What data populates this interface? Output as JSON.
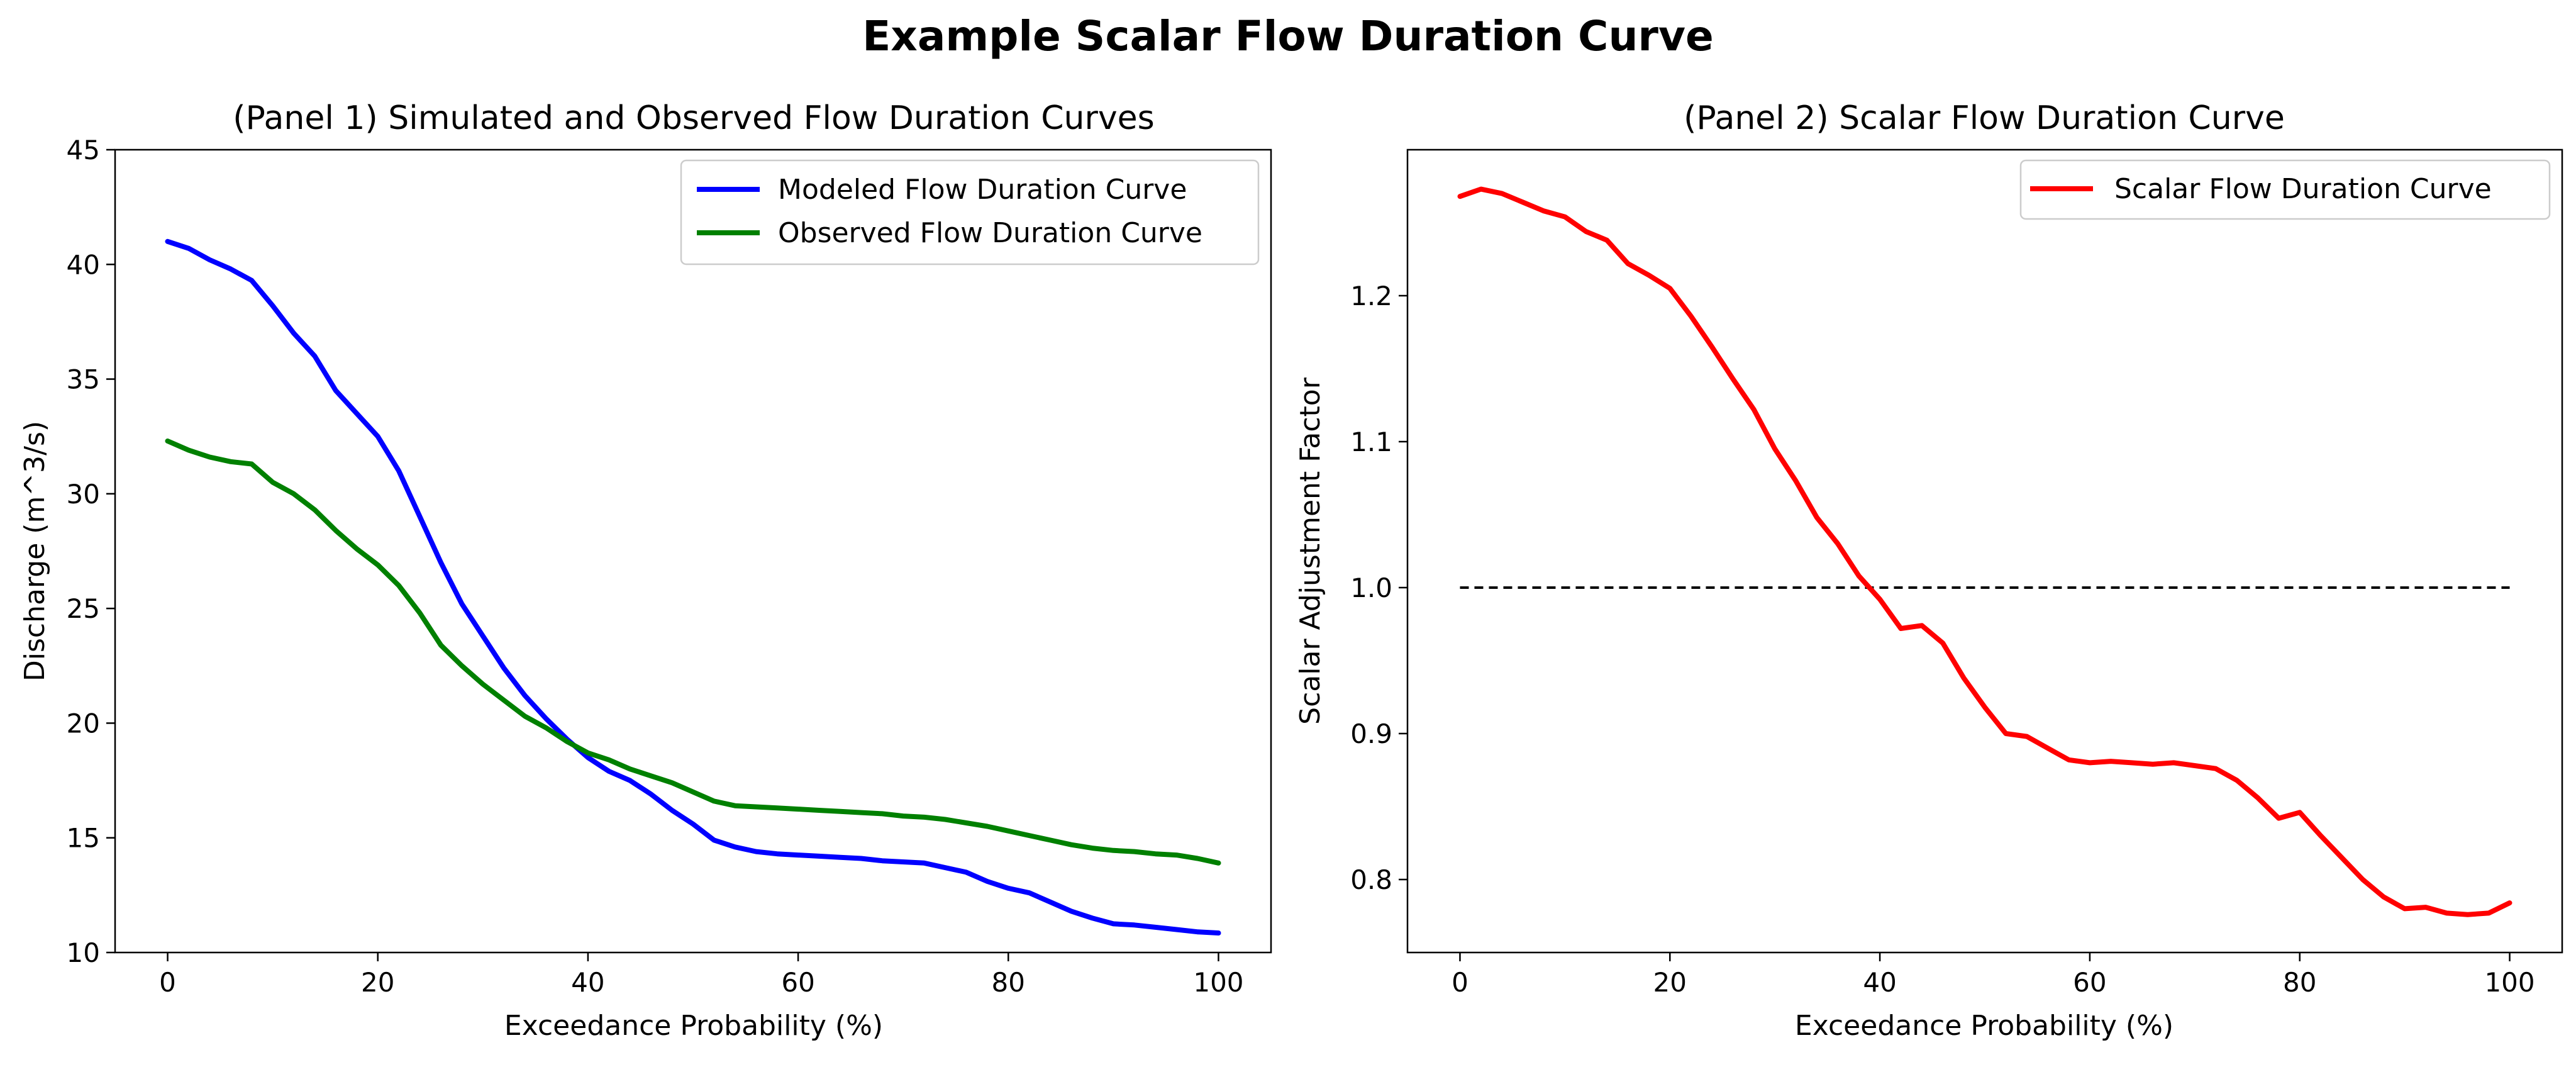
{
  "figure": {
    "title": "Example Scalar Flow Duration Curve"
  },
  "chart_data": [
    {
      "type": "line",
      "title": "(Panel 1) Simulated and Observed Flow Duration Curves",
      "xlabel": "Exceedance Probability (%)",
      "ylabel": "Discharge (m^3/s)",
      "xlim": [
        -5,
        105
      ],
      "ylim": [
        10,
        45
      ],
      "xticks": [
        0,
        20,
        40,
        60,
        80,
        100
      ],
      "yticks": [
        10,
        15,
        20,
        25,
        30,
        35,
        40,
        45
      ],
      "grid": false,
      "legend_position": "top-right",
      "series": [
        {
          "name": "Modeled Flow Duration Curve",
          "color": "#0000ff",
          "x": [
            0,
            2,
            4,
            6,
            8,
            10,
            12,
            14,
            16,
            18,
            20,
            22,
            24,
            26,
            28,
            30,
            32,
            34,
            36,
            38,
            40,
            42,
            44,
            46,
            48,
            50,
            52,
            54,
            56,
            58,
            60,
            62,
            64,
            66,
            68,
            70,
            72,
            74,
            76,
            78,
            80,
            82,
            84,
            86,
            88,
            90,
            92,
            94,
            96,
            98,
            100
          ],
          "y": [
            41.0,
            40.7,
            40.2,
            39.8,
            39.3,
            38.2,
            37.0,
            36.0,
            34.5,
            33.5,
            32.5,
            31.0,
            29.0,
            27.0,
            25.2,
            23.8,
            22.4,
            21.2,
            20.2,
            19.3,
            18.5,
            17.9,
            17.5,
            16.9,
            16.2,
            15.6,
            14.9,
            14.6,
            14.4,
            14.3,
            14.25,
            14.2,
            14.15,
            14.1,
            14.0,
            13.95,
            13.9,
            13.7,
            13.5,
            13.1,
            12.8,
            12.6,
            12.2,
            11.8,
            11.5,
            11.25,
            11.2,
            11.1,
            11.0,
            10.9,
            10.85
          ]
        },
        {
          "name": "Observed Flow Duration Curve",
          "color": "#008000",
          "x": [
            0,
            2,
            4,
            6,
            8,
            10,
            12,
            14,
            16,
            18,
            20,
            22,
            24,
            26,
            28,
            30,
            32,
            34,
            36,
            38,
            40,
            42,
            44,
            46,
            48,
            50,
            52,
            54,
            56,
            58,
            60,
            62,
            64,
            66,
            68,
            70,
            72,
            74,
            76,
            78,
            80,
            82,
            84,
            86,
            88,
            90,
            92,
            94,
            96,
            98,
            100
          ],
          "y": [
            32.3,
            31.9,
            31.6,
            31.4,
            31.3,
            30.5,
            30.0,
            29.3,
            28.4,
            27.6,
            26.9,
            26.0,
            24.8,
            23.4,
            22.5,
            21.7,
            21.0,
            20.3,
            19.8,
            19.2,
            18.7,
            18.4,
            18.0,
            17.7,
            17.4,
            17.0,
            16.6,
            16.4,
            16.35,
            16.3,
            16.25,
            16.2,
            16.15,
            16.1,
            16.05,
            15.95,
            15.9,
            15.8,
            15.65,
            15.5,
            15.3,
            15.1,
            14.9,
            14.7,
            14.55,
            14.45,
            14.4,
            14.3,
            14.25,
            14.1,
            13.9
          ]
        }
      ]
    },
    {
      "type": "line",
      "title": "(Panel 2) Scalar Flow Duration Curve",
      "xlabel": "Exceedance Probability (%)",
      "ylabel": "Scalar Adjustment Factor",
      "xlim": [
        -5,
        105
      ],
      "ylim": [
        0.75,
        1.3
      ],
      "xticks": [
        0,
        20,
        40,
        60,
        80,
        100
      ],
      "yticks": [
        0.8,
        0.9,
        1.0,
        1.1,
        1.2
      ],
      "grid": false,
      "legend_position": "top-right",
      "reference_line": {
        "y": 1.0,
        "style": "dashed",
        "color": "#000000"
      },
      "series": [
        {
          "name": "Scalar Flow Duration Curve",
          "color": "#ff0000",
          "x": [
            0,
            2,
            4,
            6,
            8,
            10,
            12,
            14,
            16,
            18,
            20,
            22,
            24,
            26,
            28,
            30,
            32,
            34,
            36,
            38,
            40,
            42,
            44,
            46,
            48,
            50,
            52,
            54,
            56,
            58,
            60,
            62,
            64,
            66,
            68,
            70,
            72,
            74,
            76,
            78,
            80,
            82,
            84,
            86,
            88,
            90,
            92,
            94,
            96,
            98,
            100
          ],
          "y": [
            1.268,
            1.273,
            1.27,
            1.264,
            1.258,
            1.254,
            1.244,
            1.238,
            1.222,
            1.214,
            1.205,
            1.186,
            1.165,
            1.143,
            1.122,
            1.095,
            1.073,
            1.048,
            1.03,
            1.008,
            0.992,
            0.972,
            0.974,
            0.962,
            0.938,
            0.918,
            0.9,
            0.898,
            0.89,
            0.882,
            0.88,
            0.881,
            0.88,
            0.879,
            0.88,
            0.878,
            0.876,
            0.868,
            0.856,
            0.842,
            0.846,
            0.83,
            0.815,
            0.8,
            0.788,
            0.78,
            0.781,
            0.777,
            0.776,
            0.777,
            0.784
          ]
        }
      ]
    }
  ]
}
